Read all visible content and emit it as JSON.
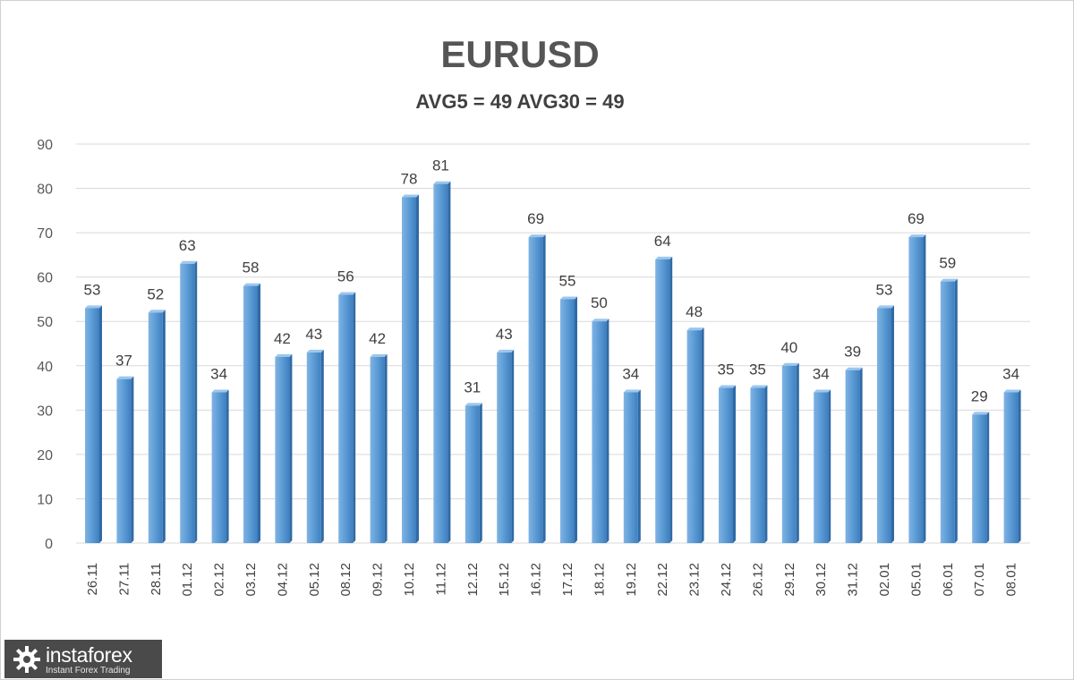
{
  "chart_data": {
    "type": "bar",
    "title": "EURUSD",
    "subtitle": "AVG5 = 49 AVG30 = 49",
    "categories": [
      "26.11",
      "27.11",
      "28.11",
      "01.12",
      "02.12",
      "03.12",
      "04.12",
      "05.12",
      "08.12",
      "09.12",
      "10.12",
      "11.12",
      "12.12",
      "15.12",
      "16.12",
      "17.12",
      "18.12",
      "19.12",
      "22.12",
      "23.12",
      "24.12",
      "26.12",
      "29.12",
      "30.12",
      "31.12",
      "02.01",
      "05.01",
      "06.01",
      "07.01",
      "08.01"
    ],
    "values": [
      53,
      37,
      52,
      63,
      34,
      58,
      42,
      43,
      56,
      42,
      78,
      81,
      31,
      43,
      69,
      55,
      50,
      34,
      64,
      48,
      35,
      35,
      40,
      34,
      39,
      53,
      69,
      59,
      29,
      34
    ],
    "ylim": [
      0,
      90
    ],
    "yticks": [
      0,
      10,
      20,
      30,
      40,
      50,
      60,
      70,
      80,
      90
    ],
    "grid": true,
    "bar_color": "#5b9bd5"
  },
  "logo": {
    "name": "instaforex",
    "tagline": "Instant Forex Trading"
  }
}
